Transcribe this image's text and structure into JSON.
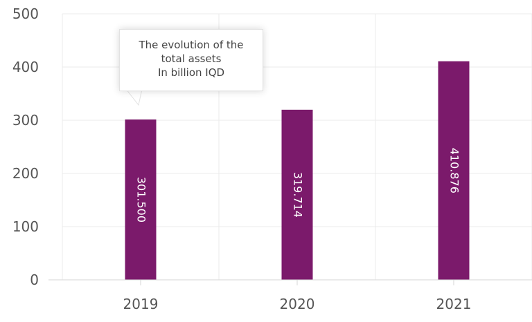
{
  "chart_data": {
    "type": "bar",
    "title": "",
    "xlabel": "",
    "ylabel": "",
    "categories": [
      "2019",
      "2020",
      "2021"
    ],
    "values": [
      301.5,
      319.714,
      410.876
    ],
    "value_labels": [
      "301.500",
      "319.714",
      "410.876"
    ],
    "ylim": [
      0,
      500
    ],
    "yticks": [
      "0",
      "100",
      "200",
      "300",
      "400",
      "500"
    ],
    "grid": true,
    "bar_color": "#7b1a6b",
    "annotation": {
      "lines": [
        "The evolution of the",
        "total assets",
        "In billion IQD"
      ],
      "attached_to": "2019"
    }
  }
}
